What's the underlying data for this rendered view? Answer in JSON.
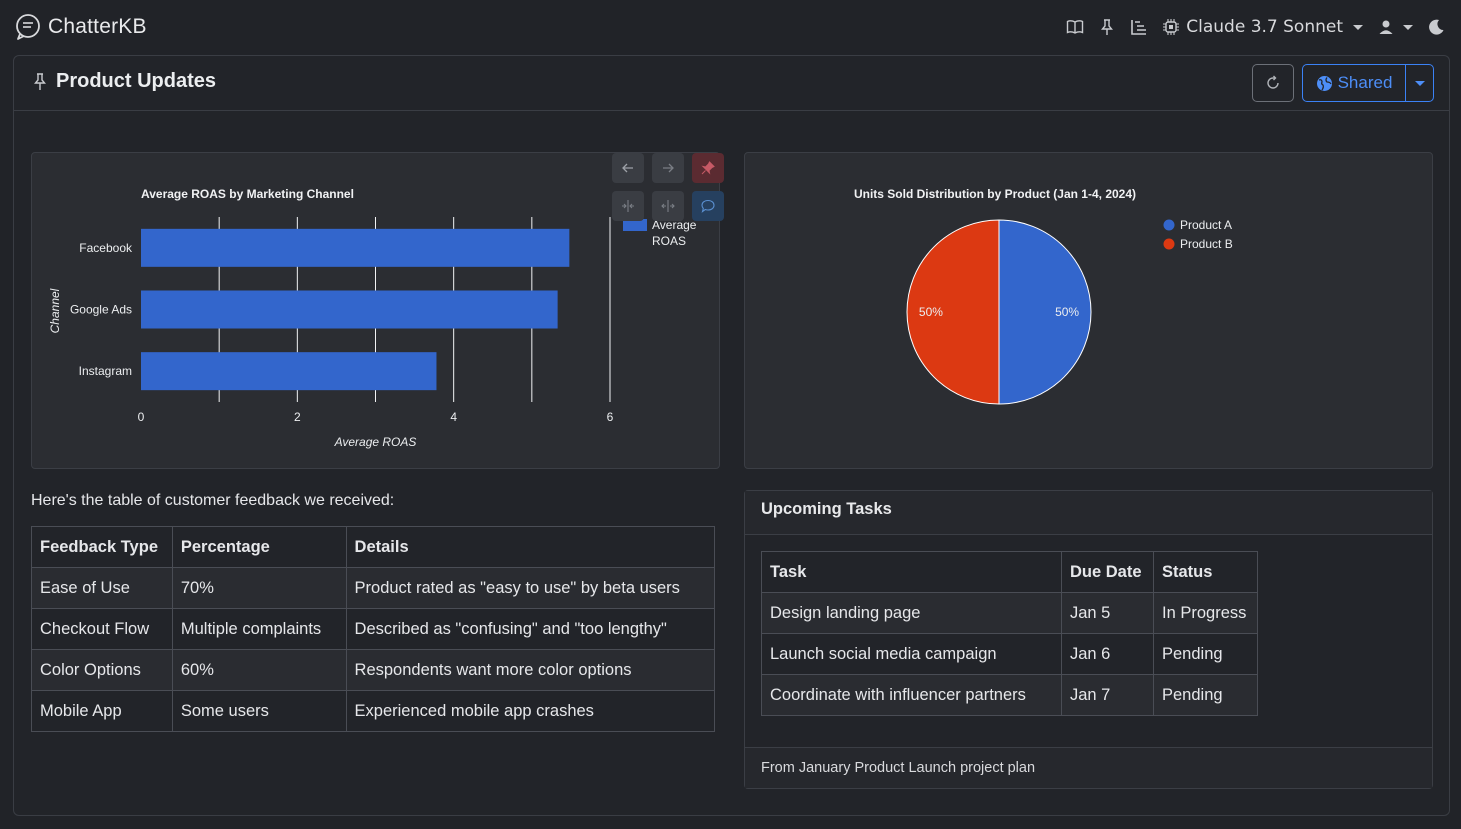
{
  "app": {
    "name": "ChatterKB",
    "model": "Claude 3.7 Sonnet"
  },
  "nav_icons": [
    "book-icon",
    "pin-icon",
    "tree-icon",
    "chip-icon",
    "user-icon",
    "moon-icon"
  ],
  "page": {
    "title": "Product Updates",
    "share_label": "Shared"
  },
  "colors": {
    "accent": "#3b82f6",
    "bar": "#3366cc",
    "product_a": "#3366cc",
    "product_b": "#dc3912"
  },
  "chart_data": [
    {
      "type": "bar",
      "orientation": "horizontal",
      "title": "Average ROAS by Marketing Channel",
      "categories": [
        "Facebook",
        "Google Ads",
        "Instagram"
      ],
      "series": [
        {
          "name": "Average ROAS",
          "values": [
            5.48,
            5.33,
            3.78
          ]
        }
      ],
      "xlabel": "Average ROAS",
      "ylabel": "Channel",
      "xlim": [
        0,
        6
      ],
      "xticks": [
        "0",
        "2",
        "4",
        "6"
      ],
      "legend": [
        "Average",
        "ROAS"
      ],
      "legend_position": "right",
      "grid": true
    },
    {
      "type": "pie",
      "title": "Units Sold Distribution by Product (Jan 1-4, 2024)",
      "labels": [
        "Product A",
        "Product B"
      ],
      "values": [
        50,
        50
      ],
      "data_labels": [
        "50%",
        "50%"
      ],
      "legend_position": "right"
    }
  ],
  "feedback": {
    "intro": "Here's the table of customer feedback we received:",
    "headers": [
      "Feedback Type",
      "Percentage",
      "Details"
    ],
    "rows": [
      [
        "Ease of Use",
        "70%",
        "Product rated as \"easy to use\" by beta users"
      ],
      [
        "Checkout Flow",
        "Multiple complaints",
        "Described as \"confusing\" and \"too lengthy\""
      ],
      [
        "Color Options",
        "60%",
        "Respondents want more color options"
      ],
      [
        "Mobile App",
        "Some users",
        "Experienced mobile app crashes"
      ]
    ]
  },
  "tasks": {
    "title": "Upcoming Tasks",
    "headers": [
      "Task",
      "Due Date",
      "Status"
    ],
    "rows": [
      [
        "Design landing page",
        "Jan 5",
        "In Progress"
      ],
      [
        "Launch social media campaign",
        "Jan 6",
        "Pending"
      ],
      [
        "Coordinate with influencer partners",
        "Jan 7",
        "Pending"
      ]
    ],
    "footer": "From January Product Launch project plan"
  }
}
